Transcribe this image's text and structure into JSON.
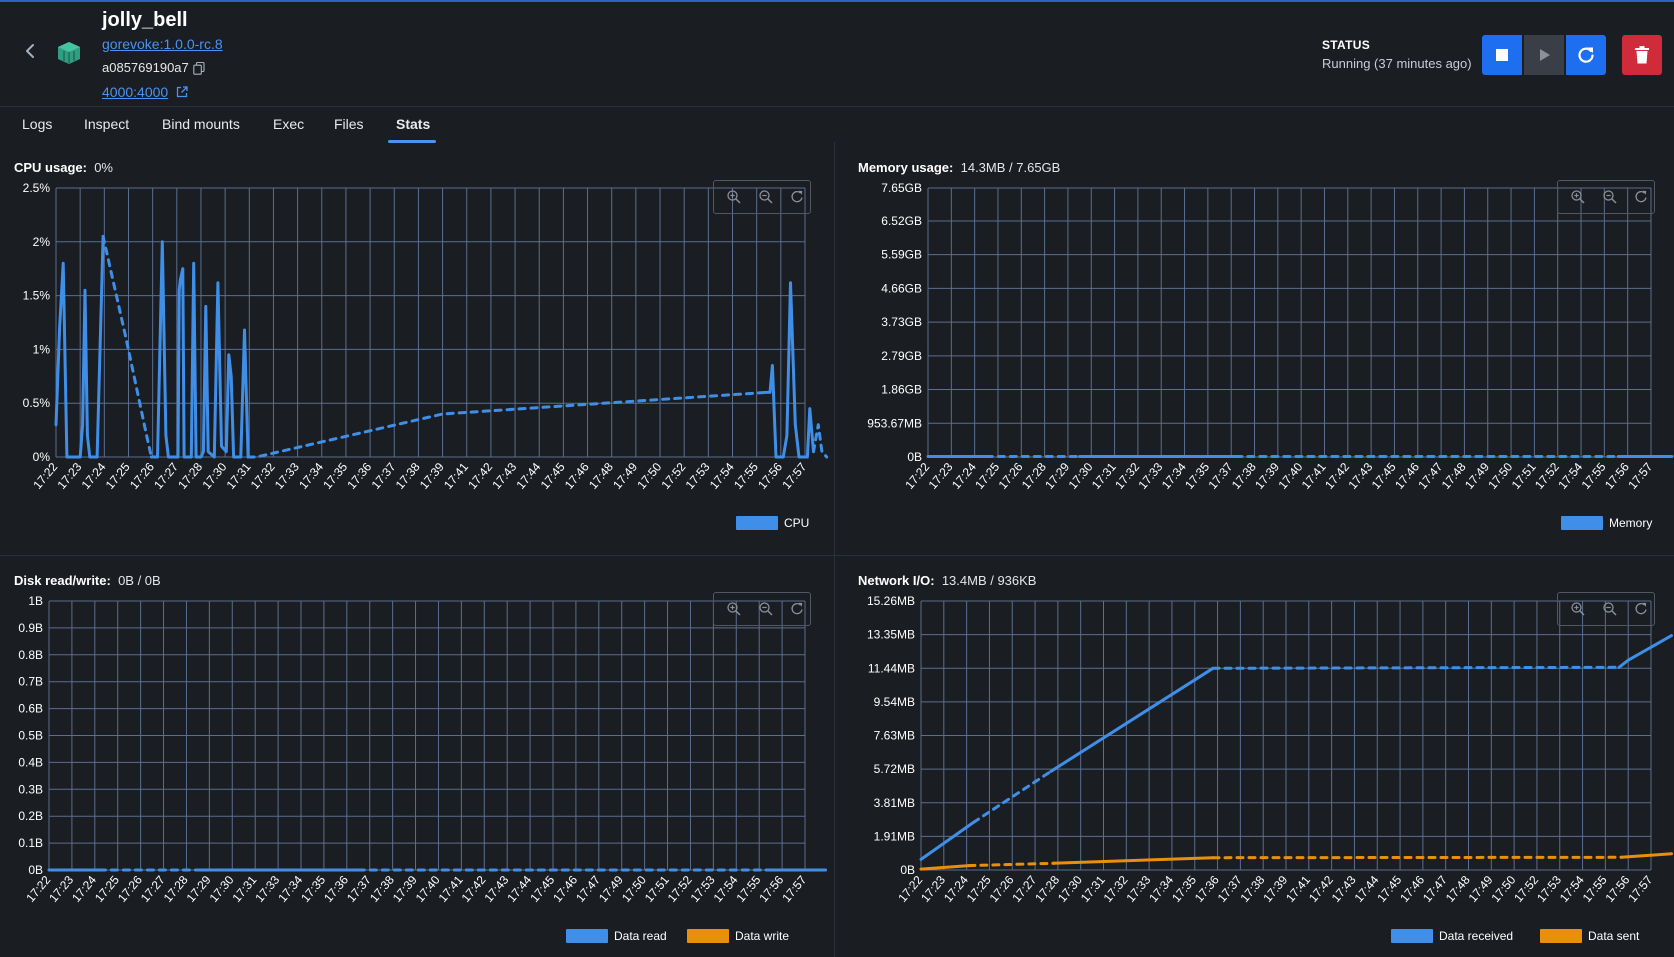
{
  "container": {
    "name": "jolly_bell",
    "image": "gorevoke:1.0.0-rc.8",
    "id": "a085769190a7",
    "port": "4000:4000",
    "status_label": "STATUS",
    "status_text": "Running (37 minutes ago)"
  },
  "tabs": [
    {
      "label": "Logs"
    },
    {
      "label": "Inspect"
    },
    {
      "label": "Bind mounts"
    },
    {
      "label": "Exec"
    },
    {
      "label": "Files"
    },
    {
      "label": "Stats",
      "active": true
    }
  ],
  "colors": {
    "accent": "#1e6ef0",
    "series_blue": "#3f8fe8",
    "series_orange": "#e8900c",
    "delete": "#cf2b3b",
    "grid": "#5b6f8f"
  },
  "panels": {
    "cpu": {
      "label": "CPU usage:",
      "value": "0%"
    },
    "memory": {
      "label": "Memory usage:",
      "value": "14.3MB / 7.65GB"
    },
    "disk": {
      "label": "Disk read/write:",
      "value": "0B / 0B"
    },
    "network": {
      "label": "Network I/O:",
      "value": "13.4MB / 936KB"
    }
  },
  "chart_data": [
    {
      "id": "cpu",
      "type": "line",
      "x_categories": [
        "17:22",
        "17:23",
        "17:24",
        "17:25",
        "17:26",
        "17:27",
        "17:28",
        "17:30",
        "17:31",
        "17:32",
        "17:33",
        "17:34",
        "17:35",
        "17:36",
        "17:37",
        "17:38",
        "17:39",
        "17:41",
        "17:42",
        "17:43",
        "17:44",
        "17:45",
        "17:46",
        "17:48",
        "17:49",
        "17:50",
        "17:52",
        "17:53",
        "17:54",
        "17:55",
        "17:56",
        "17:57"
      ],
      "yticks": [
        "0%",
        "0.5%",
        "1%",
        "1.5%",
        "2%",
        "2.5%"
      ],
      "ylim": [
        0,
        2.5
      ],
      "grid": true,
      "legend_position": "bottom-right",
      "series": [
        {
          "name": "CPU",
          "color": "#3f8fe8",
          "segments": [
            {
              "style": "solid",
              "points": [
                [
                  0,
                  0.3
                ],
                [
                  0.15,
                  1.2
                ],
                [
                  0.3,
                  1.8
                ],
                [
                  0.45,
                  0
                ],
                [
                  0.75,
                  0
                ],
                [
                  1,
                  0
                ],
                [
                  1.1,
                  0.3
                ],
                [
                  1.2,
                  1.55
                ],
                [
                  1.3,
                  0.2
                ],
                [
                  1.4,
                  0
                ],
                [
                  1.7,
                  0
                ],
                [
                  1.95,
                  2.05
                ]
              ]
            },
            {
              "style": "dashed",
              "points": [
                [
                  1.95,
                  2.05
                ],
                [
                  2.9,
                  1.1
                ],
                [
                  3.75,
                  0.2
                ],
                [
                  3.95,
                  0
                ]
              ]
            },
            {
              "style": "solid",
              "points": [
                [
                  3.95,
                  0
                ],
                [
                  4.2,
                  0
                ],
                [
                  4.4,
                  2.0
                ],
                [
                  4.55,
                  0.2
                ],
                [
                  4.65,
                  0
                ],
                [
                  5.05,
                  0
                ],
                [
                  5.1,
                  1.55
                ],
                [
                  5.15,
                  1.65
                ],
                [
                  5.25,
                  1.75
                ],
                [
                  5.3,
                  0
                ],
                [
                  5.6,
                  0
                ],
                [
                  5.7,
                  1.8
                ],
                [
                  5.8,
                  0
                ],
                [
                  6.0,
                  0
                ],
                [
                  6.1,
                  0.05
                ],
                [
                  6.2,
                  1.4
                ],
                [
                  6.3,
                  0.05
                ],
                [
                  6.55,
                  0
                ],
                [
                  6.7,
                  1.62
                ],
                [
                  6.85,
                  0.1
                ],
                [
                  7.05,
                  0.05
                ],
                [
                  7.15,
                  0.95
                ],
                [
                  7.25,
                  0.75
                ],
                [
                  7.35,
                  0
                ],
                [
                  7.65,
                  0
                ],
                [
                  7.8,
                  1.18
                ],
                [
                  7.95,
                  0
                ]
              ]
            },
            {
              "style": "dashed",
              "points": [
                [
                  7.95,
                  0
                ],
                [
                  8.3,
                  0
                ],
                [
                  16,
                  0.4
                ],
                [
                  29.4,
                  0.6
                ]
              ]
            },
            {
              "style": "solid",
              "points": [
                [
                  29.4,
                  0.6
                ],
                [
                  29.55,
                  0.6
                ],
                [
                  29.65,
                  0.85
                ],
                [
                  29.8,
                  0
                ],
                [
                  30.1,
                  0
                ],
                [
                  30.25,
                  0.2
                ],
                [
                  30.4,
                  1.62
                ],
                [
                  30.6,
                  0.3
                ],
                [
                  30.75,
                  0
                ],
                [
                  31.1,
                  0
                ],
                [
                  31.2,
                  0.45
                ],
                [
                  31.35,
                  0.05
                ]
              ]
            },
            {
              "style": "dashed",
              "points": [
                [
                  31.35,
                  0.05
                ],
                [
                  31.55,
                  0.3
                ],
                [
                  31.7,
                  0.05
                ],
                [
                  31.9,
                  0
                ]
              ]
            }
          ]
        }
      ]
    },
    {
      "id": "memory",
      "type": "line",
      "x_categories": [
        "17:22",
        "17:23",
        "17:24",
        "17:25",
        "17:26",
        "17:28",
        "17:29",
        "17:30",
        "17:31",
        "17:32",
        "17:33",
        "17:34",
        "17:35",
        "17:37",
        "17:38",
        "17:39",
        "17:40",
        "17:41",
        "17:42",
        "17:43",
        "17:45",
        "17:46",
        "17:47",
        "17:48",
        "17:49",
        "17:50",
        "17:51",
        "17:52",
        "17:54",
        "17:55",
        "17:56",
        "17:57"
      ],
      "yticks": [
        "0B",
        "953.67MB",
        "1.86GB",
        "2.79GB",
        "3.73GB",
        "4.66GB",
        "5.59GB",
        "6.52GB",
        "7.65GB"
      ],
      "ylim": [
        0,
        7.65
      ],
      "grid": true,
      "legend_position": "bottom-right",
      "series": [
        {
          "name": "Memory",
          "color": "#3f8fe8",
          "segments": [
            {
              "style": "solid",
              "points": [
                [
                  0,
                  0.014
                ],
                [
                  2.5,
                  0.014
                ]
              ]
            },
            {
              "style": "dashed",
              "points": [
                [
                  2.5,
                  0.014
                ],
                [
                  6.5,
                  0.014
                ]
              ]
            },
            {
              "style": "solid",
              "points": [
                [
                  6.5,
                  0.014
                ],
                [
                  13.2,
                  0.014
                ]
              ]
            },
            {
              "style": "dashed",
              "points": [
                [
                  13.2,
                  0.014
                ],
                [
                  29.6,
                  0.014
                ]
              ]
            },
            {
              "style": "solid",
              "points": [
                [
                  29.6,
                  0.014
                ],
                [
                  31.9,
                  0.014
                ]
              ]
            }
          ]
        }
      ]
    },
    {
      "id": "disk",
      "type": "line",
      "x_categories": [
        "17:22",
        "17:23",
        "17:24",
        "17:25",
        "17:26",
        "17:27",
        "17:28",
        "17:29",
        "17:30",
        "17:31",
        "17:33",
        "17:34",
        "17:35",
        "17:36",
        "17:37",
        "17:38",
        "17:39",
        "17:40",
        "17:41",
        "17:42",
        "17:43",
        "17:44",
        "17:45",
        "17:46",
        "17:47",
        "17:49",
        "17:50",
        "17:51",
        "17:52",
        "17:53",
        "17:54",
        "17:55",
        "17:56",
        "17:57"
      ],
      "yticks": [
        "0B",
        "0.1B",
        "0.2B",
        "0.3B",
        "0.4B",
        "0.5B",
        "0.6B",
        "0.7B",
        "0.8B",
        "0.9B",
        "1B"
      ],
      "ylim": [
        0,
        1
      ],
      "grid": true,
      "legend_position": "bottom-right",
      "series": [
        {
          "name": "Data read",
          "color": "#3f8fe8",
          "segments": [
            {
              "style": "solid",
              "points": [
                [
                  0,
                  0
                ],
                [
                  2.2,
                  0
                ]
              ]
            },
            {
              "style": "dashed",
              "points": [
                [
                  2.2,
                  0
                ],
                [
                  6.5,
                  0
                ]
              ]
            },
            {
              "style": "solid",
              "points": [
                [
                  6.5,
                  0
                ],
                [
                  13.5,
                  0
                ]
              ]
            },
            {
              "style": "dashed",
              "points": [
                [
                  13.5,
                  0
                ],
                [
                  31.3,
                  0
                ]
              ]
            },
            {
              "style": "solid",
              "points": [
                [
                  31.3,
                  0
                ],
                [
                  33.9,
                  0
                ]
              ]
            }
          ]
        },
        {
          "name": "Data write",
          "color": "#e8900c",
          "segments": []
        }
      ]
    },
    {
      "id": "network",
      "type": "line",
      "x_categories": [
        "17:22",
        "17:23",
        "17:24",
        "17:25",
        "17:26",
        "17:27",
        "17:28",
        "17:30",
        "17:31",
        "17:32",
        "17:33",
        "17:34",
        "17:35",
        "17:36",
        "17:37",
        "17:38",
        "17:39",
        "17:41",
        "17:42",
        "17:43",
        "17:44",
        "17:45",
        "17:46",
        "17:47",
        "17:48",
        "17:49",
        "17:50",
        "17:52",
        "17:53",
        "17:54",
        "17:55",
        "17:56",
        "17:57"
      ],
      "yticks": [
        "0B",
        "1.91MB",
        "3.81MB",
        "5.72MB",
        "7.63MB",
        "9.54MB",
        "11.44MB",
        "13.35MB",
        "15.26MB"
      ],
      "ylim": [
        0,
        15.26
      ],
      "grid": true,
      "legend_position": "bottom-right",
      "series": [
        {
          "name": "Data received",
          "color": "#3f8fe8",
          "segments": [
            {
              "style": "solid",
              "points": [
                [
                  0,
                  0.6
                ],
                [
                  2.3,
                  2.7
                ]
              ]
            },
            {
              "style": "dashed",
              "points": [
                [
                  2.3,
                  2.7
                ],
                [
                  5.7,
                  5.6
                ]
              ]
            },
            {
              "style": "solid",
              "points": [
                [
                  5.7,
                  5.6
                ],
                [
                  12.8,
                  11.44
                ]
              ]
            },
            {
              "style": "dashed",
              "points": [
                [
                  12.8,
                  11.44
                ],
                [
                  30.6,
                  11.5
                ]
              ]
            },
            {
              "style": "solid",
              "points": [
                [
                  30.6,
                  11.5
                ],
                [
                  31.0,
                  11.9
                ],
                [
                  32.9,
                  13.3
                ]
              ]
            }
          ]
        },
        {
          "name": "Data sent",
          "color": "#e8900c",
          "segments": [
            {
              "style": "solid",
              "points": [
                [
                  0,
                  0.05
                ],
                [
                  2.1,
                  0.25
                ]
              ]
            },
            {
              "style": "dashed",
              "points": [
                [
                  2.1,
                  0.25
                ],
                [
                  5.8,
                  0.38
                ]
              ]
            },
            {
              "style": "solid",
              "points": [
                [
                  5.8,
                  0.38
                ],
                [
                  12.8,
                  0.7
                ]
              ]
            },
            {
              "style": "dashed",
              "points": [
                [
                  12.8,
                  0.7
                ],
                [
                  30.7,
                  0.72
                ]
              ]
            },
            {
              "style": "solid",
              "points": [
                [
                  30.7,
                  0.72
                ],
                [
                  32.9,
                  0.92
                ]
              ]
            }
          ]
        }
      ]
    }
  ]
}
